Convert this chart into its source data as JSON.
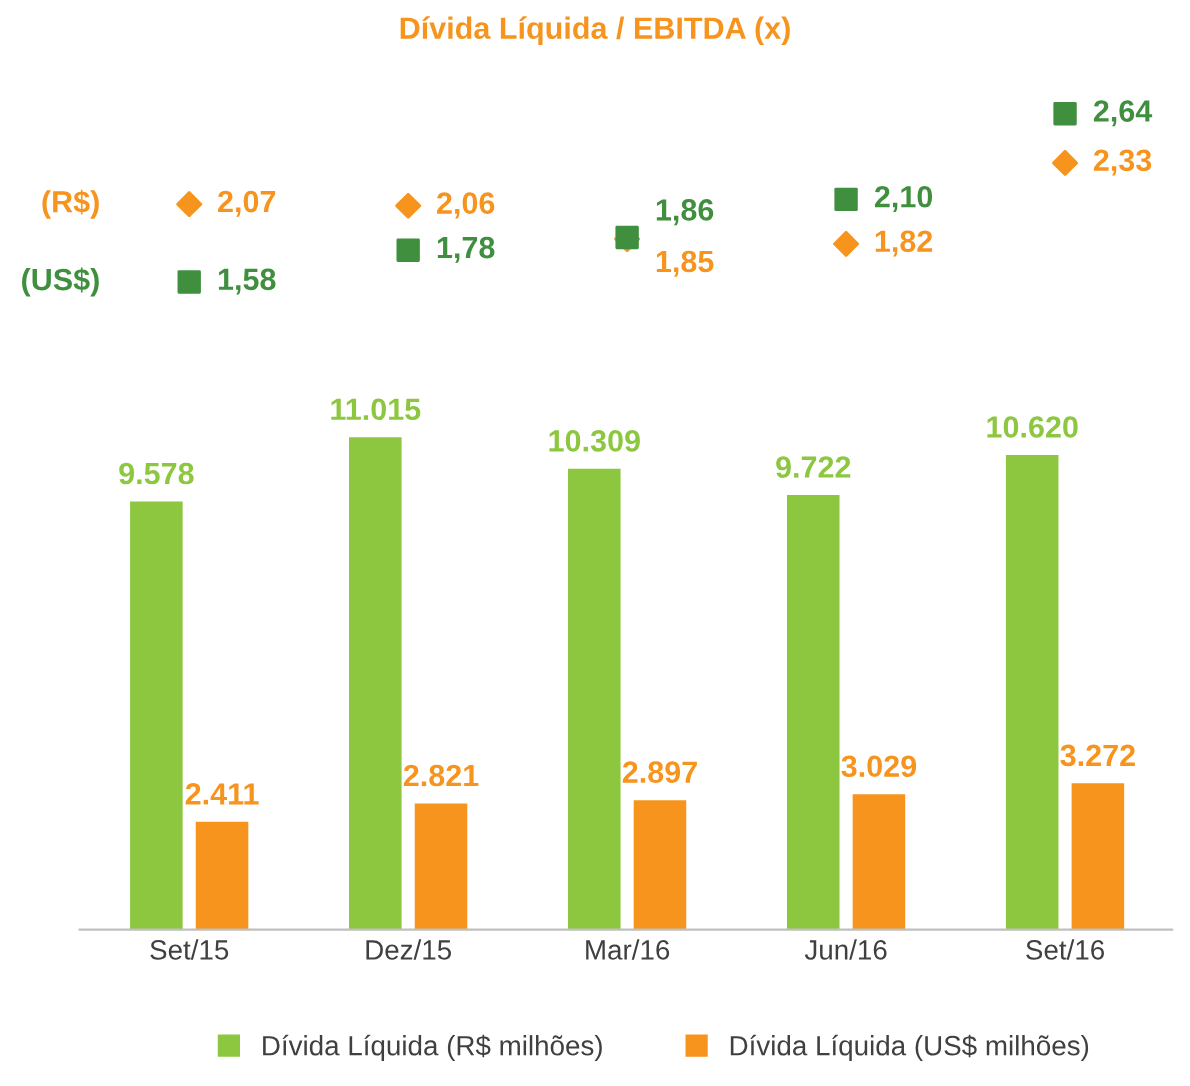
{
  "chart_data": {
    "type": "bar",
    "title": "Dívida Líquida / EBITDA (x)",
    "categories": [
      "Set/15",
      "Dez/15",
      "Mar/16",
      "Jun/16",
      "Set/16"
    ],
    "series": [
      {
        "name": "Dívida Líquida (R$ milhões)",
        "color": "#8dc63f",
        "values": [
          9578,
          11015,
          10309,
          9722,
          10620
        ],
        "value_labels": [
          "9.578",
          "11.015",
          "10.309",
          "9.722",
          "10.620"
        ]
      },
      {
        "name": "Dívida Líquida (US$ milhões)",
        "color": "#f7941d",
        "values": [
          2411,
          2821,
          2897,
          3029,
          3272
        ],
        "value_labels": [
          "2.411",
          "2.821",
          "2.897",
          "3.029",
          "3.272"
        ]
      },
      {
        "name": "(R$)",
        "type": "scatter",
        "axis": "y2",
        "marker": "diamond",
        "color": "#f7941d",
        "values": [
          2.07,
          2.06,
          1.85,
          1.82,
          2.33
        ],
        "value_labels": [
          "2,07",
          "2,06",
          "1,85",
          "1,82",
          "2,33"
        ]
      },
      {
        "name": "(US$)",
        "type": "scatter",
        "axis": "y2",
        "marker": "square",
        "color": "#3f8f3f",
        "values": [
          1.58,
          1.78,
          1.86,
          2.1,
          2.64
        ],
        "value_labels": [
          "1,58",
          "1,78",
          "1,86",
          "2,10",
          "2,64"
        ]
      }
    ],
    "ylim": [
      0,
      19000
    ],
    "y2lim": [
      -2.5,
      2.85
    ],
    "tick_labels": "x",
    "grid": false,
    "legend": "bottom"
  }
}
